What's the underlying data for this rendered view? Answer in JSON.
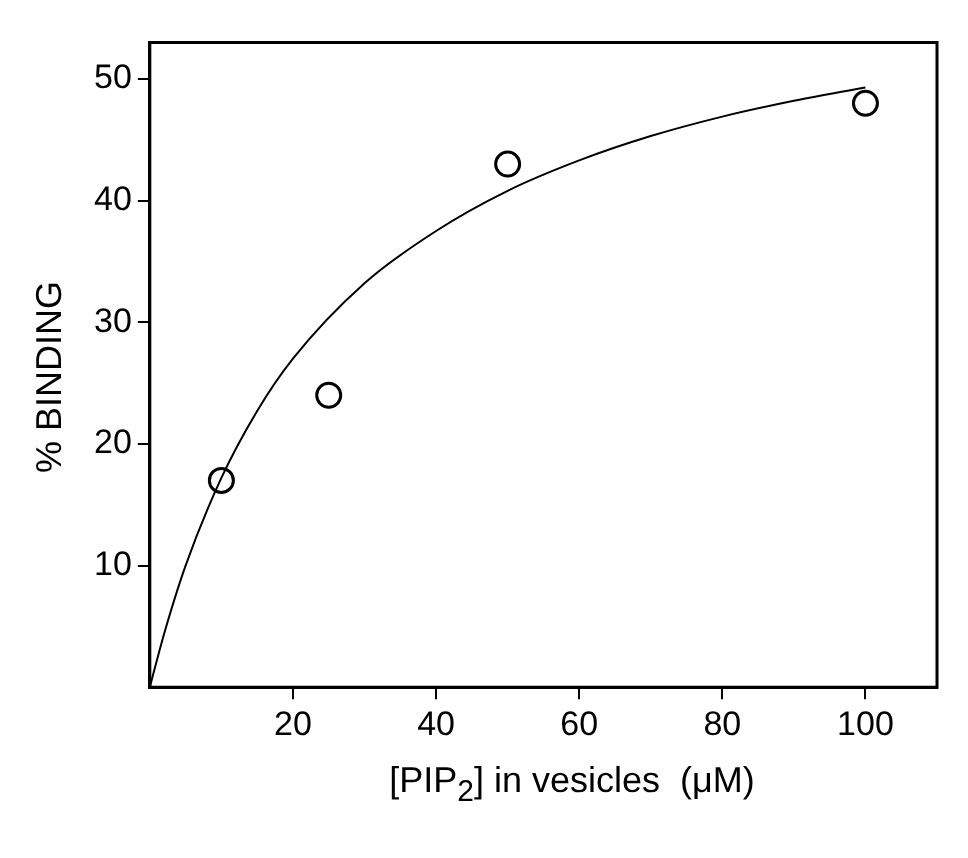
{
  "chart_data": {
    "type": "scatter",
    "xlabel": "[PIP$_{2}$] in vesicles  (μM)",
    "ylabel": "% BINDING",
    "xlim": [
      0,
      110
    ],
    "ylim": [
      0,
      53
    ],
    "xticks": [
      20,
      40,
      60,
      80,
      100
    ],
    "yticks": [
      10,
      20,
      30,
      40,
      50
    ],
    "grid": false,
    "legend": false,
    "series": [
      {
        "type": "scatter",
        "color": "#000000",
        "marker": "circle",
        "x": [
          10,
          25,
          50,
          100
        ],
        "values": [
          17,
          24,
          43,
          48
        ]
      },
      {
        "type": "line",
        "color": "#000000",
        "marker": "none",
        "x": [
          0,
          2,
          5,
          10,
          15,
          20,
          30,
          40,
          50,
          60,
          70,
          80,
          90,
          100
        ],
        "values": [
          0,
          4.4,
          10,
          17.2,
          22.7,
          27,
          33.2,
          37.5,
          40.8,
          43.3,
          45.3,
          46.9,
          48.2,
          49.3
        ]
      }
    ]
  }
}
